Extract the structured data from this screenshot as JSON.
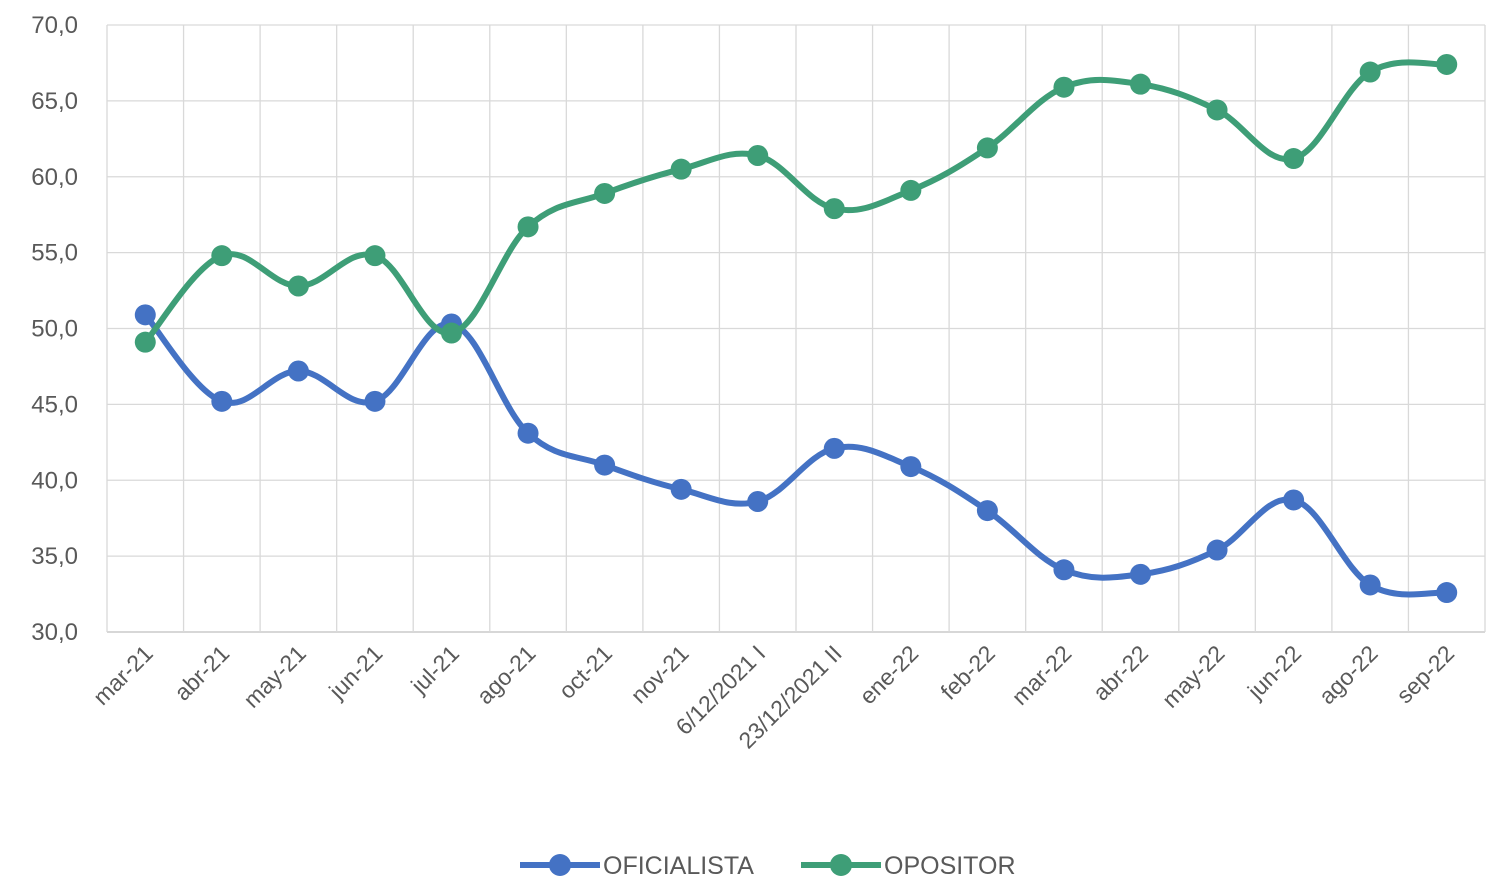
{
  "chart_data": {
    "type": "line",
    "categories": [
      "mar-21",
      "abr-21",
      "may-21",
      "jun-21",
      "jul-21",
      "ago-21",
      "oct-21",
      "nov-21",
      "6/12/2021 I",
      "23/12/2021 II",
      "ene-22",
      "feb-22",
      "mar-22",
      "abr-22",
      "may-22",
      "jun-22",
      "ago-22",
      "sep-22"
    ],
    "series": [
      {
        "name": "OFICIALISTA",
        "color": "#4472C4",
        "values": [
          50.9,
          45.2,
          47.2,
          45.2,
          50.3,
          43.1,
          41.0,
          39.4,
          38.6,
          42.1,
          40.9,
          38.0,
          34.1,
          33.8,
          35.4,
          38.7,
          33.1,
          32.6
        ]
      },
      {
        "name": "OPOSITOR",
        "color": "#3E9E77",
        "values": [
          49.1,
          54.8,
          52.8,
          54.8,
          49.7,
          56.7,
          58.9,
          60.5,
          61.4,
          57.9,
          59.1,
          61.9,
          65.9,
          66.1,
          64.4,
          61.2,
          66.9,
          67.4
        ]
      }
    ],
    "ylim": [
      30,
      70
    ],
    "yticks": [
      "30,0",
      "35,0",
      "40,0",
      "45,0",
      "50,0",
      "55,0",
      "60,0",
      "65,0",
      "70,0"
    ],
    "grid": true,
    "legend_position": "bottom",
    "title": "",
    "xlabel": "",
    "ylabel": ""
  }
}
